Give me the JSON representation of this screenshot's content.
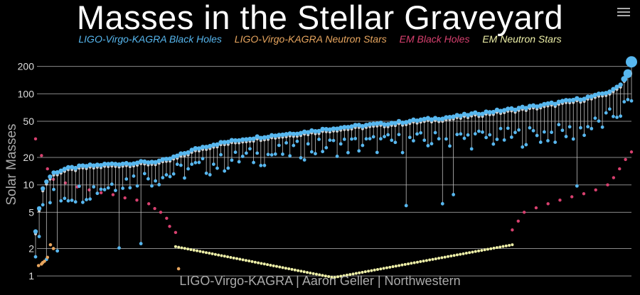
{
  "chart_data": {
    "type": "scatter",
    "title": "Masses in the Stellar Graveyard",
    "ylabel": "Solar Masses",
    "credit": "LIGO-Virgo-KAGRA | Aaron Geller | Northwestern",
    "y_scale": "log",
    "ylim": [
      0.9,
      260
    ],
    "y_ticks": [
      1,
      2,
      5,
      10,
      20,
      50,
      100,
      200
    ],
    "grid": true,
    "legend_position": "top",
    "legend": [
      {
        "name": "LIGO-Virgo-KAGRA Black Holes",
        "color": "#57b7ef"
      },
      {
        "name": "LIGO-Virgo-KAGRA Neutron Stars",
        "color": "#e8a65f"
      },
      {
        "name": "EM Black Holes",
        "color": "#d8406f"
      },
      {
        "name": "EM Neutron Stars",
        "color": "#eef0a8"
      }
    ],
    "lvk_bh_envelope": {
      "primary": [
        [
          0.0,
          3.0
        ],
        [
          0.01,
          8.5
        ],
        [
          0.02,
          11.5
        ],
        [
          0.03,
          13.5
        ],
        [
          0.05,
          15.0
        ],
        [
          0.08,
          16.0
        ],
        [
          0.12,
          16.8
        ],
        [
          0.16,
          17.4
        ],
        [
          0.2,
          18.0
        ],
        [
          0.22,
          18.8
        ],
        [
          0.24,
          21.0
        ],
        [
          0.27,
          25.0
        ],
        [
          0.3,
          28.0
        ],
        [
          0.35,
          32.0
        ],
        [
          0.4,
          35.0
        ],
        [
          0.45,
          38.0
        ],
        [
          0.5,
          42.0
        ],
        [
          0.55,
          45.0
        ],
        [
          0.6,
          48.0
        ],
        [
          0.65,
          52.0
        ],
        [
          0.7,
          56.0
        ],
        [
          0.75,
          62.0
        ],
        [
          0.8,
          68.0
        ],
        [
          0.85,
          75.0
        ],
        [
          0.9,
          85.0
        ],
        [
          0.94,
          95.0
        ],
        [
          0.97,
          110.0
        ],
        [
          0.985,
          135.0
        ],
        [
          0.995,
          175.0
        ],
        [
          1.0,
          225.0
        ]
      ],
      "secondary": [
        [
          0.0,
          1.8
        ],
        [
          0.01,
          5.0
        ],
        [
          0.03,
          7.5
        ],
        [
          0.08,
          8.5
        ],
        [
          0.15,
          11.0
        ],
        [
          0.22,
          13.0
        ],
        [
          0.25,
          14.5
        ],
        [
          0.3,
          17.0
        ],
        [
          0.35,
          20.0
        ],
        [
          0.4,
          22.0
        ],
        [
          0.45,
          25.0
        ],
        [
          0.5,
          27.0
        ],
        [
          0.55,
          28.0
        ],
        [
          0.6,
          29.5
        ],
        [
          0.65,
          30.5
        ],
        [
          0.7,
          32.0
        ],
        [
          0.75,
          33.0
        ],
        [
          0.8,
          34.0
        ],
        [
          0.85,
          36.0
        ],
        [
          0.9,
          38.0
        ],
        [
          0.95,
          48.0
        ],
        [
          1.0,
          80.0
        ]
      ],
      "remnant_fraction": 0.94
    },
    "lvk_neutron_stars": [
      [
        0.005,
        1.3
      ],
      [
        0.01,
        1.35
      ],
      [
        0.012,
        1.4
      ],
      [
        0.015,
        1.45
      ],
      [
        0.02,
        1.6
      ],
      [
        0.025,
        2.2
      ],
      [
        0.03,
        2.0
      ],
      [
        0.24,
        1.2
      ]
    ],
    "em_black_holes": [
      [
        0.0,
        32.0
      ],
      [
        0.01,
        21.0
      ],
      [
        0.02,
        15.0
      ],
      [
        0.03,
        11.5
      ],
      [
        0.05,
        10.5
      ],
      [
        0.07,
        9.5
      ],
      [
        0.09,
        8.8
      ],
      [
        0.11,
        8.2
      ],
      [
        0.13,
        7.8
      ],
      [
        0.15,
        7.2
      ],
      [
        0.17,
        6.8
      ],
      [
        0.19,
        6.2
      ],
      [
        0.2,
        5.5
      ],
      [
        0.21,
        5.0
      ],
      [
        0.22,
        4.3
      ],
      [
        0.225,
        3.5
      ],
      [
        0.235,
        3.0
      ],
      [
        0.8,
        3.2
      ],
      [
        0.81,
        4.0
      ],
      [
        0.82,
        5.0
      ],
      [
        0.84,
        5.6
      ],
      [
        0.86,
        6.2
      ],
      [
        0.88,
        6.8
      ],
      [
        0.9,
        7.4
      ],
      [
        0.92,
        8.0
      ],
      [
        0.94,
        8.8
      ],
      [
        0.96,
        10.0
      ],
      [
        0.97,
        12.0
      ],
      [
        0.98,
        15.0
      ],
      [
        0.99,
        19.0
      ],
      [
        1.0,
        23.0
      ]
    ],
    "em_neutron_stars": {
      "x_range": [
        0.235,
        0.8
      ],
      "left_mass": 2.1,
      "min_mass": 0.96,
      "right_mass": 2.2,
      "min_x": 0.5
    }
  }
}
